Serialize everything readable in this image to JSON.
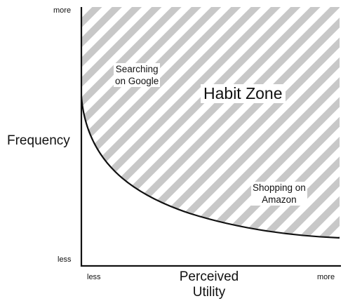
{
  "diagram": {
    "y_axis": {
      "title": "Frequency",
      "high_label": "more",
      "low_label": "less"
    },
    "x_axis": {
      "title_line1": "Perceived",
      "title_line2": "Utility",
      "low_label": "less",
      "high_label": "more"
    },
    "zone": {
      "title": "Habit Zone",
      "pattern": "diagonal-stripes"
    },
    "examples": [
      {
        "line1": "Searching",
        "line2": "on Google"
      },
      {
        "line1": "Shopping on",
        "line2": "Amazon"
      }
    ],
    "colors": {
      "stripe": "#c8c8c8",
      "axis": "#111111",
      "curve": "#111111",
      "background": "#ffffff"
    }
  }
}
